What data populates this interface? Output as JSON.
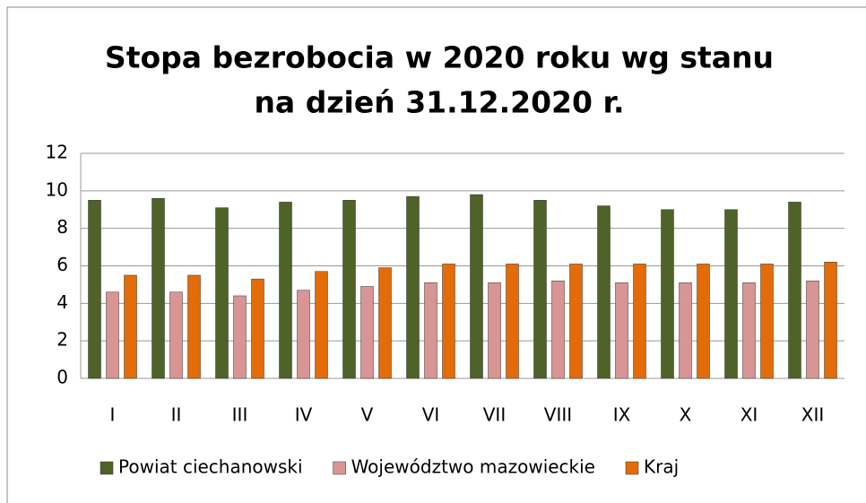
{
  "chart_data": {
    "type": "bar",
    "title": [
      "Stopa bezrobocia w 2020 roku wg stanu",
      "na dzień 31.12.2020 r."
    ],
    "categories": [
      "I",
      "II",
      "III",
      "IV",
      "V",
      "VI",
      "VII",
      "VIII",
      "IX",
      "X",
      "XI",
      "XII"
    ],
    "series": [
      {
        "name": "Powiat ciechanowski",
        "color": "#4f6228",
        "values": [
          9.5,
          9.6,
          9.1,
          9.4,
          9.5,
          9.7,
          9.8,
          9.5,
          9.2,
          9.0,
          9.0,
          9.4
        ]
      },
      {
        "name": "Województwo mazowieckie",
        "color": "#d99594",
        "values": [
          4.6,
          4.6,
          4.4,
          4.7,
          4.9,
          5.1,
          5.1,
          5.2,
          5.1,
          5.1,
          5.1,
          5.2
        ]
      },
      {
        "name": "Kraj",
        "color": "#e36c09",
        "values": [
          5.5,
          5.5,
          5.3,
          5.7,
          5.9,
          6.1,
          6.1,
          6.1,
          6.1,
          6.1,
          6.1,
          6.2
        ]
      }
    ],
    "ylim": [
      0,
      12
    ],
    "yticks": [
      0,
      2,
      4,
      6,
      8,
      10,
      12
    ],
    "grid": true,
    "legend": "bottom"
  }
}
